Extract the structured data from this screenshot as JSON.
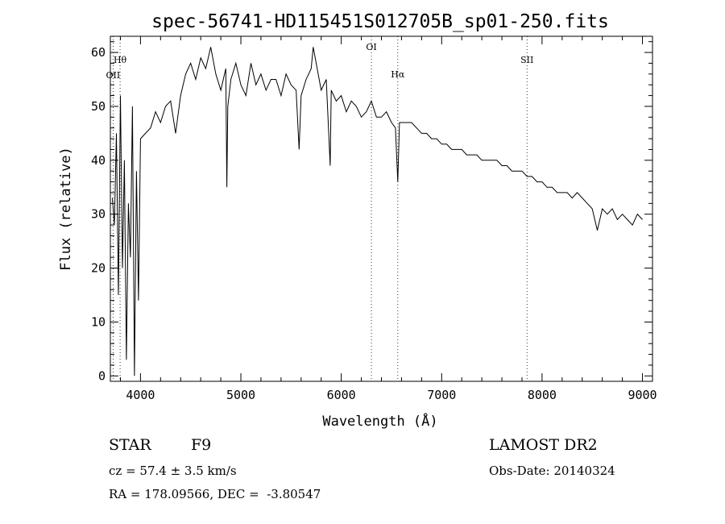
{
  "chart_data": {
    "type": "line",
    "title": "spec-56741-HD115451S012705B_sp01-250.fits",
    "xlabel": "Wavelength (Å)",
    "ylabel": "Flux (relative)",
    "xlim": [
      3700,
      9100
    ],
    "ylim": [
      -1,
      63
    ],
    "xticks": [
      4000,
      5000,
      6000,
      7000,
      8000,
      9000
    ],
    "yticks": [
      0,
      10,
      20,
      30,
      40,
      50,
      60
    ],
    "series": [
      {
        "x": [
          3720,
          3740,
          3760,
          3780,
          3800,
          3820,
          3840,
          3860,
          3880,
          3900,
          3920,
          3940,
          3960,
          3980,
          4000,
          4050,
          4100,
          4150,
          4200,
          4250,
          4300,
          4350,
          4400,
          4450,
          4500,
          4550,
          4600,
          4650,
          4700,
          4750,
          4800,
          4850,
          4860,
          4870,
          4900,
          4950,
          5000,
          5050,
          5100,
          5150,
          5200,
          5250,
          5300,
          5350,
          5400,
          5450,
          5500,
          5550,
          5580,
          5600,
          5650,
          5700,
          5720,
          5750,
          5800,
          5850,
          5890,
          5900,
          5950,
          6000,
          6050,
          6100,
          6150,
          6200,
          6250,
          6300,
          6350,
          6400,
          6450,
          6500,
          6540,
          6563,
          6580,
          6600,
          6650,
          6700,
          6750,
          6800,
          6850,
          6900,
          6950,
          7000,
          7050,
          7100,
          7150,
          7200,
          7250,
          7300,
          7350,
          7400,
          7450,
          7500,
          7550,
          7600,
          7650,
          7700,
          7750,
          7800,
          7850,
          7900,
          7950,
          8000,
          8050,
          8100,
          8150,
          8200,
          8250,
          8300,
          8350,
          8400,
          8450,
          8500,
          8550,
          8600,
          8650,
          8700,
          8750,
          8800,
          8850,
          8900,
          8950,
          9000
        ],
        "y": [
          33,
          28,
          45,
          15,
          52,
          20,
          40,
          3,
          32,
          22,
          50,
          0,
          38,
          14,
          44,
          45,
          46,
          49,
          47,
          50,
          51,
          45,
          52,
          56,
          58,
          55,
          59,
          57,
          61,
          56,
          53,
          57,
          35,
          50,
          55,
          58,
          54,
          52,
          58,
          54,
          56,
          53,
          55,
          55,
          52,
          56,
          54,
          53,
          42,
          52,
          55,
          57,
          61,
          58,
          53,
          55,
          39,
          53,
          51,
          52,
          49,
          51,
          50,
          48,
          49,
          51,
          48,
          48,
          49,
          47,
          46,
          36,
          47,
          47,
          47,
          47,
          46,
          45,
          45,
          44,
          44,
          43,
          43,
          42,
          42,
          42,
          41,
          41,
          41,
          40,
          40,
          40,
          40,
          39,
          39,
          38,
          38,
          38,
          37,
          37,
          36,
          36,
          35,
          35,
          34,
          34,
          34,
          33,
          34,
          33,
          32,
          31,
          27,
          31,
          30,
          31,
          29,
          30,
          29,
          28,
          30,
          29
        ],
        "color": "#000000"
      }
    ],
    "lines": [
      {
        "label": "OII",
        "x": 3727
      },
      {
        "label": "Hθ",
        "x": 3797
      },
      {
        "label": "OI",
        "x": 6300
      },
      {
        "label": "Hα",
        "x": 6563
      },
      {
        "label": "SII",
        "x": 7850
      }
    ],
    "grid": false
  },
  "info": {
    "obj_type": "STAR",
    "subclass": "F9",
    "survey": "LAMOST DR2",
    "cz": "cz = 57.4 ± 3.5 km/s",
    "obs_date": "Obs-Date: 20140324",
    "coords": "RA = 178.09566, DEC =  -3.80547"
  }
}
